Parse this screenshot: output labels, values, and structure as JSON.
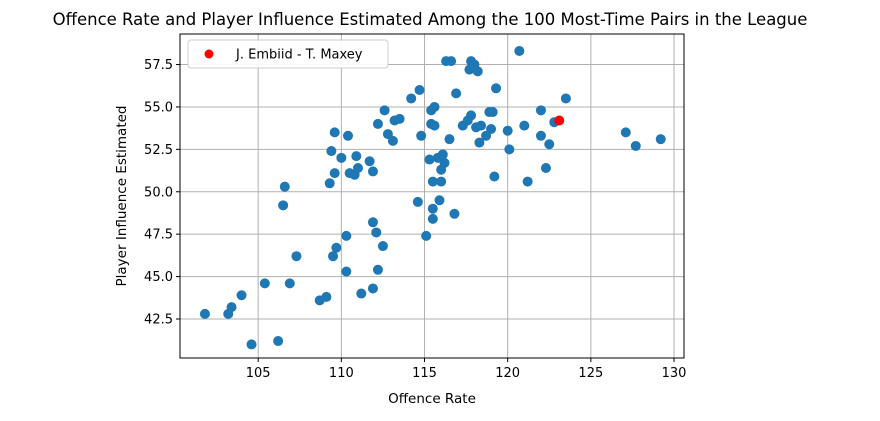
{
  "chart_data": {
    "type": "scatter",
    "title": "Offence Rate and Player Influence Estimated Among the 100 Most-Time Pairs in the League",
    "xlabel": "Offence Rate",
    "ylabel": "Player Influence Estimated",
    "xlim": [
      100.3,
      130.6
    ],
    "ylim": [
      40.2,
      59.3
    ],
    "xticks": [
      105,
      110,
      115,
      120,
      125,
      130
    ],
    "yticks": [
      42.5,
      45.0,
      47.5,
      50.0,
      52.5,
      55.0,
      57.5
    ],
    "ytick_labels": [
      "42.5",
      "45.0",
      "47.5",
      "50.0",
      "52.5",
      "55.0",
      "57.5"
    ],
    "grid": true,
    "legend_position": "top-left",
    "colors": {
      "points": "#1f77b4",
      "highlight": "#ff0000"
    },
    "highlight": {
      "name": "J. Embiid - T. Maxey",
      "x": 123.1,
      "y": 54.2
    },
    "points": [
      {
        "x": 101.8,
        "y": 42.8
      },
      {
        "x": 103.2,
        "y": 42.8
      },
      {
        "x": 103.4,
        "y": 43.2
      },
      {
        "x": 104.0,
        "y": 43.9
      },
      {
        "x": 104.6,
        "y": 41.0
      },
      {
        "x": 105.4,
        "y": 44.6
      },
      {
        "x": 106.2,
        "y": 41.2
      },
      {
        "x": 106.5,
        "y": 49.2
      },
      {
        "x": 106.6,
        "y": 50.3
      },
      {
        "x": 106.9,
        "y": 44.6
      },
      {
        "x": 107.3,
        "y": 46.2
      },
      {
        "x": 108.7,
        "y": 43.6
      },
      {
        "x": 109.1,
        "y": 43.8
      },
      {
        "x": 109.3,
        "y": 50.5
      },
      {
        "x": 109.4,
        "y": 52.4
      },
      {
        "x": 109.5,
        "y": 46.2
      },
      {
        "x": 109.6,
        "y": 53.5
      },
      {
        "x": 109.6,
        "y": 51.1
      },
      {
        "x": 109.7,
        "y": 46.7
      },
      {
        "x": 110.0,
        "y": 52.0
      },
      {
        "x": 110.3,
        "y": 47.4
      },
      {
        "x": 110.3,
        "y": 45.3
      },
      {
        "x": 110.4,
        "y": 53.3
      },
      {
        "x": 110.5,
        "y": 51.1
      },
      {
        "x": 110.8,
        "y": 51.0
      },
      {
        "x": 110.9,
        "y": 52.1
      },
      {
        "x": 111.0,
        "y": 51.4
      },
      {
        "x": 111.2,
        "y": 44.0
      },
      {
        "x": 111.7,
        "y": 51.8
      },
      {
        "x": 111.9,
        "y": 51.2
      },
      {
        "x": 111.9,
        "y": 48.2
      },
      {
        "x": 111.9,
        "y": 44.3
      },
      {
        "x": 112.1,
        "y": 47.6
      },
      {
        "x": 112.2,
        "y": 45.4
      },
      {
        "x": 112.2,
        "y": 54.0
      },
      {
        "x": 112.5,
        "y": 46.8
      },
      {
        "x": 112.6,
        "y": 54.8
      },
      {
        "x": 112.8,
        "y": 53.4
      },
      {
        "x": 113.1,
        "y": 53.0
      },
      {
        "x": 113.2,
        "y": 54.2
      },
      {
        "x": 113.5,
        "y": 54.3
      },
      {
        "x": 114.2,
        "y": 55.5
      },
      {
        "x": 114.6,
        "y": 49.4
      },
      {
        "x": 114.7,
        "y": 56.0
      },
      {
        "x": 114.8,
        "y": 53.3
      },
      {
        "x": 115.1,
        "y": 47.4
      },
      {
        "x": 115.3,
        "y": 51.9
      },
      {
        "x": 115.4,
        "y": 54.0
      },
      {
        "x": 115.4,
        "y": 54.8
      },
      {
        "x": 115.5,
        "y": 49.0
      },
      {
        "x": 115.5,
        "y": 48.4
      },
      {
        "x": 115.5,
        "y": 50.6
      },
      {
        "x": 115.6,
        "y": 55.0
      },
      {
        "x": 115.6,
        "y": 53.9
      },
      {
        "x": 115.8,
        "y": 52.0
      },
      {
        "x": 115.9,
        "y": 49.5
      },
      {
        "x": 116.0,
        "y": 50.6
      },
      {
        "x": 116.0,
        "y": 51.3
      },
      {
        "x": 116.1,
        "y": 52.2
      },
      {
        "x": 116.2,
        "y": 51.7
      },
      {
        "x": 116.3,
        "y": 57.7
      },
      {
        "x": 116.5,
        "y": 53.1
      },
      {
        "x": 116.6,
        "y": 57.7
      },
      {
        "x": 116.8,
        "y": 48.7
      },
      {
        "x": 116.9,
        "y": 55.8
      },
      {
        "x": 117.3,
        "y": 53.9
      },
      {
        "x": 117.6,
        "y": 54.2
      },
      {
        "x": 117.7,
        "y": 57.2
      },
      {
        "x": 117.8,
        "y": 54.5
      },
      {
        "x": 117.8,
        "y": 57.7
      },
      {
        "x": 118.0,
        "y": 57.5
      },
      {
        "x": 118.1,
        "y": 53.8
      },
      {
        "x": 118.2,
        "y": 57.1
      },
      {
        "x": 118.3,
        "y": 52.9
      },
      {
        "x": 118.4,
        "y": 53.9
      },
      {
        "x": 118.7,
        "y": 53.3
      },
      {
        "x": 118.9,
        "y": 54.7
      },
      {
        "x": 119.1,
        "y": 54.7
      },
      {
        "x": 119.2,
        "y": 50.9
      },
      {
        "x": 119.3,
        "y": 56.1
      },
      {
        "x": 119.0,
        "y": 53.7
      },
      {
        "x": 120.0,
        "y": 53.6
      },
      {
        "x": 120.1,
        "y": 52.5
      },
      {
        "x": 120.7,
        "y": 58.3
      },
      {
        "x": 121.0,
        "y": 53.9
      },
      {
        "x": 121.2,
        "y": 50.6
      },
      {
        "x": 122.0,
        "y": 54.8
      },
      {
        "x": 122.0,
        "y": 53.3
      },
      {
        "x": 122.3,
        "y": 51.4
      },
      {
        "x": 122.5,
        "y": 52.8
      },
      {
        "x": 122.8,
        "y": 54.1
      },
      {
        "x": 123.5,
        "y": 55.5
      },
      {
        "x": 127.1,
        "y": 53.5
      },
      {
        "x": 127.7,
        "y": 52.7
      },
      {
        "x": 129.2,
        "y": 53.1
      }
    ]
  }
}
